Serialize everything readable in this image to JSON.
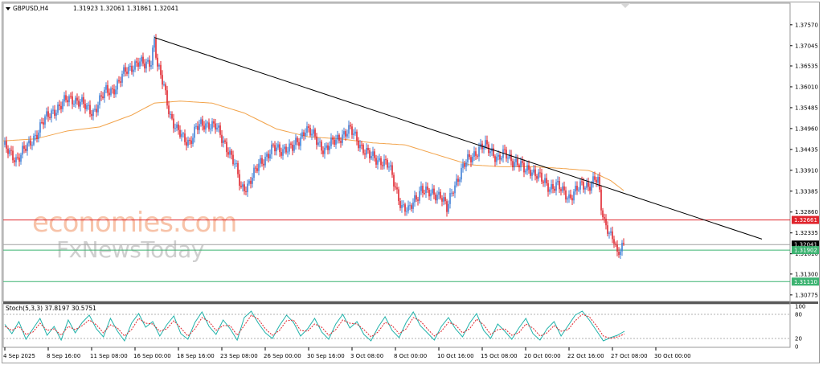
{
  "header": {
    "symbol_timeframe": "GBPUSD,H4",
    "ohlc": "1.31923 1.32061 1.31861 1.32041"
  },
  "watermark": {
    "line1": "economies.com",
    "line2": "FxNewsToday"
  },
  "colors": {
    "bull": "#3f7fd6",
    "bear": "#e0242c",
    "ma": "#f2a34a",
    "trendline": "#000000",
    "resistance": "#e0242c",
    "support": "#3cb371",
    "stoch_main": "#20b2aa",
    "stoch_signal": "#e0242c"
  },
  "chart_data": [
    {
      "type": "candlestick",
      "symbol": "GBPUSD",
      "timeframe": "H4",
      "ylim": [
        1.3061,
        1.3789
      ],
      "y_ticks": [
        "1.37570",
        "1.37045",
        "1.36535",
        "1.36010",
        "1.35485",
        "1.34960",
        "1.34435",
        "1.33910",
        "1.33385",
        "1.32860",
        "1.32335",
        "1.31810",
        "1.31300",
        "1.30775"
      ],
      "x_ticks": [
        "4 Sep 2025",
        "8 Sep 16:00",
        "11 Sep 08:00",
        "16 Sep 00:00",
        "18 Sep 16:00",
        "23 Sep 08:00",
        "26 Sep 00:00",
        "30 Sep 16:00",
        "3 Oct 08:00",
        "8 Oct 00:00",
        "10 Oct 16:00",
        "15 Oct 08:00",
        "20 Oct 00:00",
        "22 Oct 16:00",
        "27 Oct 08:00",
        "30 Oct 00:00"
      ],
      "price_path": [
        [
          0,
          1.3455
        ],
        [
          4,
          1.343
        ],
        [
          8,
          1.342
        ],
        [
          12,
          1.344
        ],
        [
          16,
          1.345
        ],
        [
          20,
          1.348
        ],
        [
          24,
          1.351
        ],
        [
          28,
          1.3525
        ],
        [
          32,
          1.3545
        ],
        [
          36,
          1.3555
        ],
        [
          40,
          1.3568
        ],
        [
          44,
          1.3572
        ],
        [
          48,
          1.3562
        ],
        [
          52,
          1.3545
        ],
        [
          56,
          1.354
        ],
        [
          60,
          1.3565
        ],
        [
          64,
          1.359
        ],
        [
          68,
          1.3595
        ],
        [
          72,
          1.361
        ],
        [
          76,
          1.364
        ],
        [
          80,
          1.3655
        ],
        [
          84,
          1.366
        ],
        [
          88,
          1.3655
        ],
        [
          92,
          1.367
        ],
        [
          94,
          1.372
        ],
        [
          96,
          1.365
        ],
        [
          100,
          1.36
        ],
        [
          104,
          1.353
        ],
        [
          108,
          1.349
        ],
        [
          112,
          1.347
        ],
        [
          116,
          1.3465
        ],
        [
          120,
          1.3495
        ],
        [
          124,
          1.3505
        ],
        [
          128,
          1.351
        ],
        [
          132,
          1.35
        ],
        [
          136,
          1.347
        ],
        [
          140,
          1.3445
        ],
        [
          144,
          1.3405
        ],
        [
          148,
          1.3345
        ],
        [
          152,
          1.3355
        ],
        [
          156,
          1.338
        ],
        [
          160,
          1.341
        ],
        [
          164,
          1.343
        ],
        [
          168,
          1.3445
        ],
        [
          172,
          1.344
        ],
        [
          176,
          1.345
        ],
        [
          180,
          1.3445
        ],
        [
          184,
          1.3465
        ],
        [
          188,
          1.35
        ],
        [
          192,
          1.348
        ],
        [
          196,
          1.346
        ],
        [
          200,
          1.3445
        ],
        [
          204,
          1.3455
        ],
        [
          208,
          1.347
        ],
        [
          212,
          1.3485
        ],
        [
          216,
          1.349
        ],
        [
          220,
          1.347
        ],
        [
          224,
          1.3445
        ],
        [
          228,
          1.3425
        ],
        [
          232,
          1.342
        ],
        [
          236,
          1.3415
        ],
        [
          240,
          1.3398
        ],
        [
          244,
          1.335
        ],
        [
          248,
          1.33
        ],
        [
          252,
          1.3285
        ],
        [
          256,
          1.332
        ],
        [
          260,
          1.3345
        ],
        [
          264,
          1.333
        ],
        [
          268,
          1.3335
        ],
        [
          272,
          1.333
        ],
        [
          276,
          1.329
        ],
        [
          280,
          1.335
        ],
        [
          284,
          1.338
        ],
        [
          288,
          1.341
        ],
        [
          292,
          1.343
        ],
        [
          296,
          1.3445
        ],
        [
          300,
          1.345
        ],
        [
          304,
          1.344
        ],
        [
          308,
          1.342
        ],
        [
          312,
          1.343
        ],
        [
          316,
          1.342
        ],
        [
          320,
          1.341
        ],
        [
          324,
          1.339
        ],
        [
          328,
          1.3395
        ],
        [
          332,
          1.338
        ],
        [
          336,
          1.336
        ],
        [
          340,
          1.335
        ],
        [
          344,
          1.3355
        ],
        [
          348,
          1.3335
        ],
        [
          352,
          1.3325
        ],
        [
          356,
          1.334
        ],
        [
          360,
          1.335
        ],
        [
          364,
          1.3355
        ],
        [
          368,
          1.337
        ],
        [
          370,
          1.336
        ],
        [
          372,
          1.3295
        ],
        [
          374,
          1.326
        ],
        [
          376,
          1.325
        ],
        [
          378,
          1.323
        ],
        [
          380,
          1.3215
        ],
        [
          382,
          1.317
        ],
        [
          384,
          1.319
        ],
        [
          386,
          1.3204
        ]
      ],
      "ma_path": [
        [
          0,
          1.3465
        ],
        [
          20,
          1.347
        ],
        [
          40,
          1.349
        ],
        [
          60,
          1.35
        ],
        [
          80,
          1.353
        ],
        [
          94,
          1.356
        ],
        [
          110,
          1.3565
        ],
        [
          130,
          1.356
        ],
        [
          150,
          1.3535
        ],
        [
          170,
          1.3495
        ],
        [
          190,
          1.3475
        ],
        [
          210,
          1.347
        ],
        [
          230,
          1.346
        ],
        [
          250,
          1.3455
        ],
        [
          270,
          1.343
        ],
        [
          290,
          1.3405
        ],
        [
          310,
          1.34
        ],
        [
          330,
          1.34
        ],
        [
          350,
          1.3395
        ],
        [
          365,
          1.339
        ],
        [
          378,
          1.3365
        ],
        [
          386,
          1.334
        ]
      ],
      "trendline": [
        [
          94,
          1.3725
        ],
        [
          472,
          1.3218
        ]
      ],
      "levels": [
        {
          "label": "1.32661",
          "value": 1.32661,
          "color": "#e0242c"
        },
        {
          "label": "1.32041",
          "value": 1.32041,
          "color": "#a0a0a0"
        },
        {
          "label": "1.31902",
          "value": 1.31902,
          "color": "#3cb371"
        },
        {
          "label": "1.31110",
          "value": 1.3111,
          "color": "#3cb371"
        }
      ]
    },
    {
      "type": "line",
      "title": "Stoch(5,3,3) 37.8197 30.5751",
      "ylim": [
        0,
        100
      ],
      "y_ticks": [
        "100",
        "80",
        "20",
        "0"
      ],
      "series": [
        {
          "values": [
            55,
            32,
            62,
            18,
            44,
            70,
            28,
            50,
            16,
            66,
            34,
            60,
            78,
            44,
            24,
            70,
            38,
            14,
            58,
            82,
            48,
            62,
            26,
            54,
            76,
            32,
            18,
            60,
            86,
            50,
            30,
            66,
            44,
            16,
            72,
            88,
            58,
            34,
            20,
            52,
            78,
            60,
            26,
            44,
            70,
            36,
            18,
            56,
            80,
            46,
            62,
            30,
            14,
            48,
            74,
            40,
            22,
            60,
            86,
            52,
            34,
            16,
            50,
            72,
            44,
            24,
            58,
            82,
            40,
            20,
            56,
            38,
            18,
            46,
            70,
            32,
            16,
            44,
            62,
            26,
            52,
            78,
            88,
            66,
            40,
            14,
            22,
            28,
            38
          ]
        },
        {
          "values": [
            50,
            40,
            50,
            30,
            36,
            58,
            40,
            44,
            28,
            50,
            42,
            52,
            66,
            54,
            34,
            54,
            46,
            26,
            42,
            70,
            58,
            56,
            38,
            44,
            64,
            46,
            26,
            44,
            72,
            62,
            40,
            52,
            52,
            28,
            52,
            78,
            68,
            44,
            28,
            40,
            64,
            66,
            40,
            38,
            56,
            48,
            28,
            42,
            66,
            58,
            56,
            42,
            24,
            36,
            60,
            52,
            32,
            44,
            72,
            64,
            44,
            26,
            38,
            60,
            54,
            34,
            44,
            68,
            54,
            30,
            42,
            44,
            28,
            34,
            56,
            46,
            26,
            34,
            52,
            38,
            42,
            64,
            80,
            74,
            52,
            26,
            20,
            24,
            31
          ]
        }
      ]
    }
  ]
}
